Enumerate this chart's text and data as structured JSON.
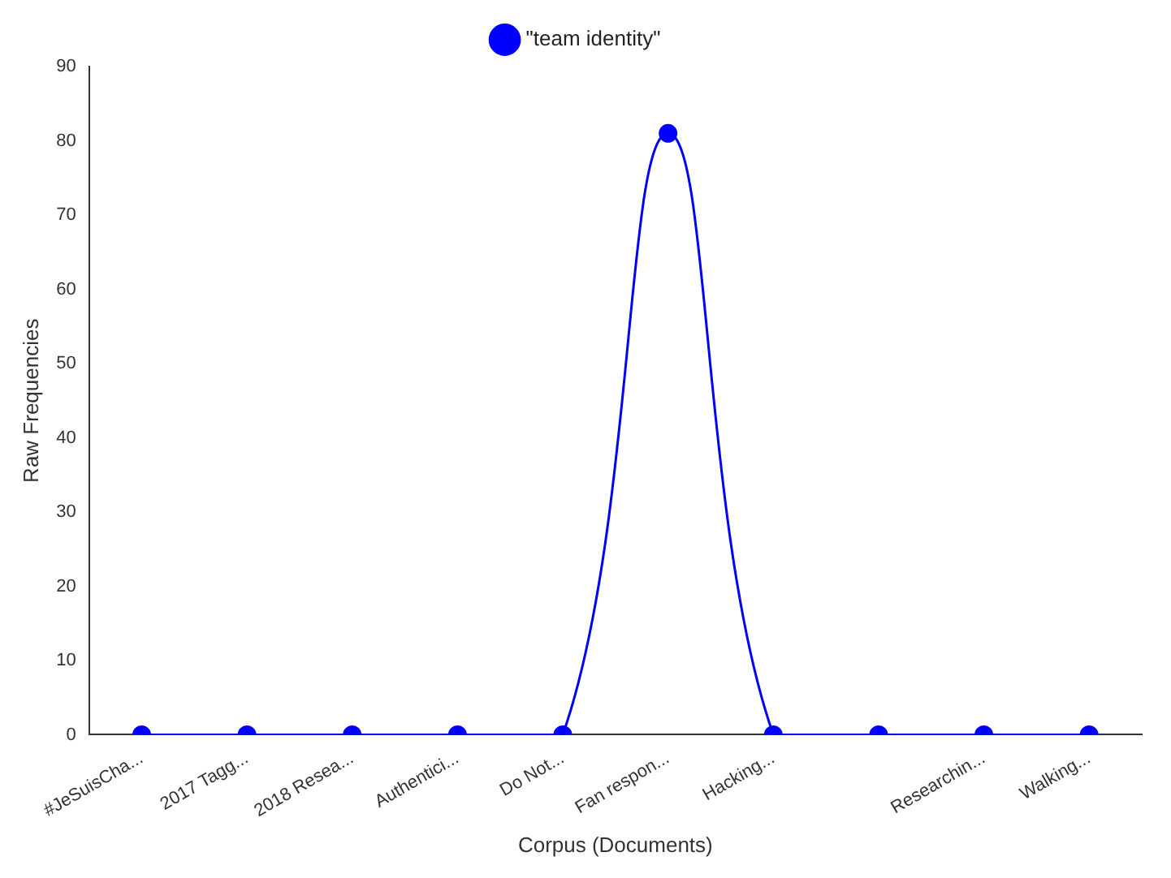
{
  "chart_data": {
    "type": "line",
    "xlabel": "Corpus (Documents)",
    "ylabel": "Raw Frequencies",
    "categories": [
      "#JeSuisCha...",
      "2017 Tagg...",
      "2018 Resea...",
      "Authentici...",
      "Do Not...",
      "Fan respon...",
      "Hacking...",
      null,
      "Researchin...",
      "Walking..."
    ],
    "series": [
      {
        "name": "\"team identity\"",
        "color": "#0000ff",
        "values": [
          0,
          0,
          0,
          0,
          0,
          81,
          0,
          0,
          0,
          0
        ]
      }
    ],
    "ylim": [
      0,
      90
    ],
    "yticks": [
      0,
      10,
      20,
      30,
      40,
      50,
      60,
      70,
      80,
      90
    ],
    "grid": false,
    "legend": "top",
    "marker": "circle",
    "line_style": "solid"
  }
}
